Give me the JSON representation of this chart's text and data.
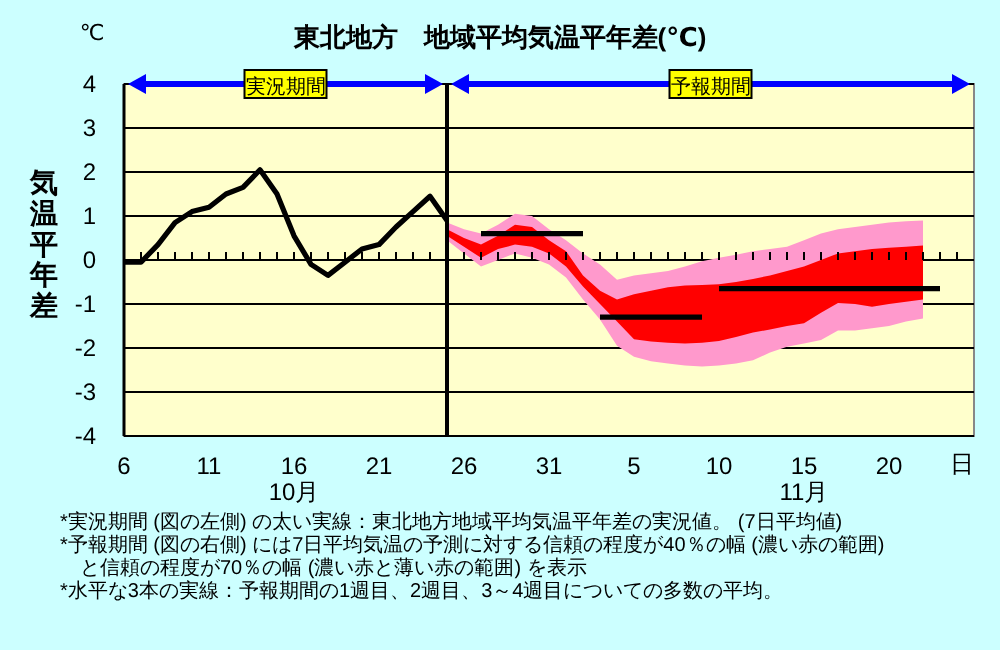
{
  "chart_data": {
    "type": "line",
    "title": "東北地方　地域平均気温平年差(℃)",
    "ylabel": "気温平年差",
    "xlabel": "日",
    "annotations": [
      "℃",
      "実況期間",
      "予報期間",
      "*実況期間 (図の左側) の太い実線：東北地方地域平均気温平年差の実況値。 (7日平均値)",
      "*予報期間 (図の右側) には7日平均気温の予測に対する信頼の程度が40％の幅 (濃い赤の範囲)",
      "　と信頼の程度が70％の幅 (濃い赤と薄い赤の範囲) を表示",
      "*水平な3本の実線：予報期間の1週目、2週目、3～4週目についての多数の平均。"
    ],
    "xlim": [
      "--10-06",
      "--11-25"
    ],
    "ylim": [
      -4,
      4
    ],
    "yticks": [
      -4,
      -3,
      -2,
      -1,
      0,
      1,
      2,
      3,
      4
    ],
    "grid": "y",
    "xticks": [
      {
        "value": "--10-06",
        "label": "6"
      },
      {
        "value": "--10-07",
        "label": null
      },
      {
        "value": "--10-08",
        "label": null
      },
      {
        "value": "--10-09",
        "label": null
      },
      {
        "value": "--10-10",
        "label": null
      },
      {
        "value": "--10-11",
        "label": "11"
      },
      {
        "value": "--10-12",
        "label": null
      },
      {
        "value": "--10-13",
        "label": null
      },
      {
        "value": "--10-14",
        "label": null
      },
      {
        "value": "--10-15",
        "label": null
      },
      {
        "value": "--10-16",
        "label": "16\n10月"
      },
      {
        "value": "--10-17",
        "label": null
      },
      {
        "value": "--10-18",
        "label": null
      },
      {
        "value": "--10-19",
        "label": null
      },
      {
        "value": "--10-20",
        "label": null
      },
      {
        "value": "--10-21",
        "label": "21"
      },
      {
        "value": "--10-22",
        "label": null
      },
      {
        "value": "--10-23",
        "label": null
      },
      {
        "value": "--10-24",
        "label": null
      },
      {
        "value": "--10-25",
        "label": null
      },
      {
        "value": "--10-26",
        "label": "26"
      },
      {
        "value": "--10-27",
        "label": null
      },
      {
        "value": "--10-28",
        "label": null
      },
      {
        "value": "--10-29",
        "label": null
      },
      {
        "value": "--10-30",
        "label": null
      },
      {
        "value": "--10-31",
        "label": "31"
      },
      {
        "value": "--11-01",
        "label": null
      },
      {
        "value": "--11-02",
        "label": null
      },
      {
        "value": "--11-03",
        "label": null
      },
      {
        "value": "--11-04",
        "label": null
      },
      {
        "value": "--11-05",
        "label": "5"
      },
      {
        "value": "--11-06",
        "label": null
      },
      {
        "value": "--11-07",
        "label": null
      },
      {
        "value": "--11-08",
        "label": null
      },
      {
        "value": "--11-09",
        "label": null
      },
      {
        "value": "--11-10",
        "label": "10"
      },
      {
        "value": "--11-11",
        "label": null
      },
      {
        "value": "--11-12",
        "label": null
      },
      {
        "value": "--11-13",
        "label": null
      },
      {
        "value": "--11-14",
        "label": null
      },
      {
        "value": "--11-15",
        "label": "15\n11月"
      },
      {
        "value": "--11-16",
        "label": null
      },
      {
        "value": "--11-17",
        "label": null
      },
      {
        "value": "--11-18",
        "label": null
      },
      {
        "value": "--11-19",
        "label": null
      },
      {
        "value": "--11-20",
        "label": "20"
      },
      {
        "value": "--11-21",
        "label": null
      },
      {
        "value": "--11-22",
        "label": null
      },
      {
        "value": "--11-23",
        "label": null
      },
      {
        "value": "--11-24",
        "label": null
      }
    ],
    "series": [
      {
        "type": "area",
        "color": "#ff99cc",
        "x": [
          "--10-25",
          "--10-26",
          "--10-27",
          "--10-28",
          "--10-29",
          "--10-30",
          "--10-31",
          "--11-01",
          "--11-02",
          "--11-03",
          "--11-04",
          "--11-05",
          "--11-06",
          "--11-07",
          "--11-08",
          "--11-09",
          "--11-10",
          "--11-11",
          "--11-12",
          "--11-13",
          "--11-14",
          "--11-15",
          "--11-16",
          "--11-17",
          "--11-18",
          "--11-19",
          "--11-20",
          "--11-21",
          "--11-22"
        ],
        "values": [
          null,
          null,
          null,
          null,
          null,
          null,
          null,
          null,
          null,
          null,
          null,
          null,
          null,
          null,
          null,
          null,
          null,
          null,
          null,
          null,
          null,
          null,
          null,
          null,
          null,
          null,
          null,
          null,
          null
        ],
        "lower": [
          0.45,
          0.15,
          -0.15,
          0.0,
          0.15,
          0.05,
          -0.1,
          -0.4,
          -0.9,
          -1.35,
          -1.95,
          -2.2,
          -2.3,
          -2.35,
          -2.4,
          -2.42,
          -2.4,
          -2.35,
          -2.28,
          -2.1,
          -1.97,
          -1.9,
          -1.82,
          -1.6,
          -1.6,
          -1.55,
          -1.5,
          -1.4,
          -1.33
        ],
        "upper": [
          0.85,
          0.7,
          0.6,
          0.8,
          1.05,
          1.0,
          0.7,
          0.45,
          0.15,
          -0.1,
          -0.45,
          -0.35,
          -0.3,
          -0.25,
          -0.15,
          -0.03,
          0.05,
          0.12,
          0.2,
          0.25,
          0.3,
          0.45,
          0.6,
          0.7,
          0.75,
          0.8,
          0.85,
          0.88,
          0.9
        ]
      },
      {
        "type": "area",
        "color": "#ff0000",
        "x": [
          "--10-25",
          "--10-26",
          "--10-27",
          "--10-28",
          "--10-29",
          "--10-30",
          "--10-31",
          "--11-01",
          "--11-02",
          "--11-03",
          "--11-04",
          "--11-05",
          "--11-06",
          "--11-07",
          "--11-08",
          "--11-09",
          "--11-10",
          "--11-11",
          "--11-12",
          "--11-13",
          "--11-14",
          "--11-15",
          "--11-16",
          "--11-17",
          "--11-18",
          "--11-19",
          "--11-20",
          "--11-21",
          "--11-22"
        ],
        "values": [
          null,
          null,
          null,
          null,
          null,
          null,
          null,
          null,
          null,
          null,
          null,
          null,
          null,
          null,
          null,
          null,
          null,
          null,
          null,
          null,
          null,
          null,
          null,
          null,
          null,
          null,
          null,
          null,
          null
        ],
        "lower": [
          0.55,
          0.3,
          0.05,
          0.25,
          0.35,
          0.3,
          0.15,
          -0.15,
          -0.6,
          -1.0,
          -1.4,
          -1.8,
          -1.85,
          -1.88,
          -1.9,
          -1.88,
          -1.84,
          -1.75,
          -1.65,
          -1.58,
          -1.5,
          -1.44,
          -1.2,
          -0.98,
          -1.0,
          -1.06,
          -1.0,
          -0.95,
          -0.9
        ],
        "upper": [
          0.7,
          0.5,
          0.35,
          0.55,
          0.8,
          0.75,
          0.45,
          0.2,
          -0.35,
          -0.7,
          -0.9,
          -0.78,
          -0.7,
          -0.62,
          -0.58,
          -0.57,
          -0.55,
          -0.5,
          -0.43,
          -0.35,
          -0.25,
          -0.15,
          0.0,
          0.15,
          0.2,
          0.25,
          0.28,
          0.3,
          0.33
        ]
      },
      {
        "color": "#000000",
        "x": [
          "--10-06",
          "--10-07",
          "--10-08",
          "--10-09",
          "--10-10",
          "--10-11",
          "--10-12",
          "--10-13",
          "--10-14",
          "--10-15",
          "--10-16",
          "--10-17",
          "--10-18",
          "--10-19",
          "--10-20",
          "--10-21",
          "--10-22",
          "--10-23",
          "--10-24",
          "--10-25"
        ],
        "values": [
          -0.05,
          -0.05,
          0.35,
          0.85,
          1.1,
          1.2,
          1.5,
          1.65,
          2.05,
          1.5,
          0.55,
          -0.1,
          -0.35,
          -0.05,
          0.25,
          0.35,
          0.75,
          1.1,
          1.45,
          0.9
        ]
      },
      {
        "color": "#000000",
        "x": [
          "--10-27",
          "--11-02"
        ],
        "values": [
          0.6,
          0.6
        ]
      },
      {
        "color": "#000000",
        "x": [
          "--11-03",
          "--11-09"
        ],
        "values": [
          -1.3,
          -1.3
        ]
      },
      {
        "color": "#000000",
        "x": [
          "--11-10",
          "--11-23"
        ],
        "values": [
          -0.65,
          -0.65
        ]
      }
    ],
    "ref_lines": [
      {
        "axis": "x",
        "value": "--10-25",
        "color": "#000000"
      }
    ]
  }
}
